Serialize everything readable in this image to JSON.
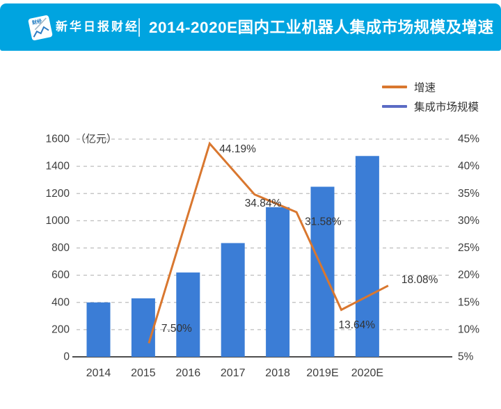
{
  "header": {
    "brand": "新华日报财经",
    "logo_badge": "财经",
    "title": "2014-2020E国内工业机器人集成市场规模及增速",
    "accent_color": "#00A4E0"
  },
  "legend": {
    "growth_label": "增速",
    "market_label": "集成市场规模",
    "growth_marker_color": "#D9772F",
    "market_marker_color": "#5B6BC4"
  },
  "chart_data": {
    "type": "bar",
    "subtype": "combo-bar-line-dual-axis",
    "title": "2014-2020E国内工业机器人集成市场规模及增速",
    "categories": [
      "2014",
      "2015",
      "2016",
      "2017",
      "2018",
      "2019E",
      "2020E"
    ],
    "bar_series": {
      "name": "集成市场规模",
      "unit": "亿元",
      "axis": "left",
      "color": "#3B7DD6",
      "values": [
        400,
        430,
        620,
        836,
        1100,
        1250,
        1476
      ]
    },
    "line_series": {
      "name": "增速",
      "unit": "%",
      "axis": "right",
      "color": "#D9772F",
      "categories": [
        "2015",
        "2016",
        "2017",
        "2018",
        "2019E",
        "2020E"
      ],
      "values": [
        7.5,
        44.19,
        34.84,
        31.58,
        13.64,
        18.08
      ],
      "point_labels": [
        "7.50%",
        "44.19%",
        "34.84%",
        "31.58%",
        "13.64%",
        "18.08%"
      ]
    },
    "left_axis": {
      "unit_label": "（亿元）",
      "min": 0,
      "max": 1600,
      "step": 200,
      "ticks": [
        "0",
        "200",
        "400",
        "600",
        "800",
        "1000",
        "1200",
        "1400",
        "1600"
      ]
    },
    "right_axis": {
      "min": 5,
      "max": 45,
      "step": 5,
      "ticks": [
        "5%",
        "10%",
        "15%",
        "20%",
        "25%",
        "30%",
        "35%",
        "40%",
        "45%"
      ]
    },
    "grid": "horizontal-dashed",
    "grid_color": "#BDBDBD",
    "axis_line_color": "#4D4D4D",
    "tick_text_color": "#3D3D3D",
    "legend_position": "top-right"
  }
}
